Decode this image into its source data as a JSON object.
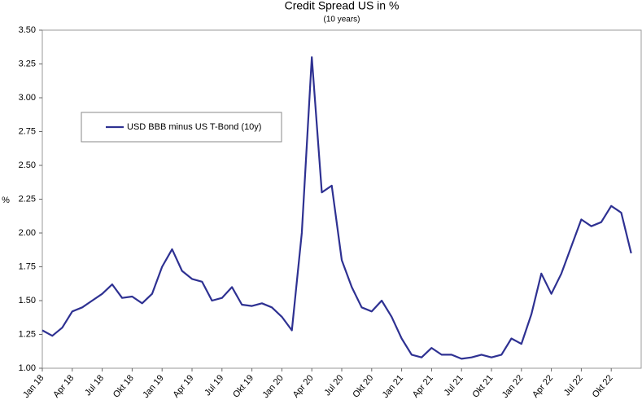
{
  "chart_data": {
    "type": "line",
    "title": "Credit Spread US in %",
    "subtitle": "(10 years)",
    "y_label": "%",
    "x": [
      "2018-01",
      "2018-02",
      "2018-03",
      "2018-04",
      "2018-05",
      "2018-06",
      "2018-07",
      "2018-08",
      "2018-09",
      "2018-10",
      "2018-11",
      "2018-12",
      "2019-01",
      "2019-02",
      "2019-03",
      "2019-04",
      "2019-05",
      "2019-06",
      "2019-07",
      "2019-08",
      "2019-09",
      "2019-10",
      "2019-11",
      "2019-12",
      "2020-01",
      "2020-02",
      "2020-03",
      "2020-04",
      "2020-05",
      "2020-06",
      "2020-07",
      "2020-08",
      "2020-09",
      "2020-10",
      "2020-11",
      "2020-12",
      "2021-01",
      "2021-02",
      "2021-03",
      "2021-04",
      "2021-05",
      "2021-06",
      "2021-07",
      "2021-08",
      "2021-09",
      "2021-10",
      "2021-11",
      "2021-12",
      "2022-01",
      "2022-02",
      "2022-03",
      "2022-04",
      "2022-05",
      "2022-06",
      "2022-07",
      "2022-08",
      "2022-09",
      "2022-10",
      "2022-11",
      "2022-12"
    ],
    "series": [
      {
        "name": "USD BBB minus US T-Bond (10y)",
        "color": "#2e3192",
        "values": [
          1.28,
          1.24,
          1.3,
          1.42,
          1.45,
          1.5,
          1.55,
          1.62,
          1.52,
          1.53,
          1.48,
          1.55,
          1.75,
          1.88,
          1.72,
          1.66,
          1.64,
          1.5,
          1.52,
          1.6,
          1.47,
          1.46,
          1.48,
          1.45,
          1.38,
          1.28,
          2.0,
          3.3,
          2.3,
          2.35,
          1.8,
          1.6,
          1.45,
          1.42,
          1.5,
          1.38,
          1.22,
          1.1,
          1.08,
          1.15,
          1.1,
          1.1,
          1.07,
          1.08,
          1.1,
          1.08,
          1.1,
          1.22,
          1.18,
          1.4,
          1.7,
          1.55,
          1.7,
          1.9,
          2.1,
          2.05,
          2.08,
          2.2,
          2.15,
          1.85
        ]
      }
    ],
    "xlim": [
      "2018-01",
      "2023-01"
    ],
    "xticks": [
      {
        "value": "2018-01",
        "label": "Jan 18"
      },
      {
        "value": "2018-04",
        "label": "Apr 18"
      },
      {
        "value": "2018-07",
        "label": "Jul 18"
      },
      {
        "value": "2018-10",
        "label": "Okt 18"
      },
      {
        "value": "2019-01",
        "label": "Jan 19"
      },
      {
        "value": "2019-04",
        "label": "Apr 19"
      },
      {
        "value": "2019-07",
        "label": "Jul 19"
      },
      {
        "value": "2019-10",
        "label": "Okt 19"
      },
      {
        "value": "2020-01",
        "label": "Jan 20"
      },
      {
        "value": "2020-04",
        "label": "Apr 20"
      },
      {
        "value": "2020-07",
        "label": "Jul 20"
      },
      {
        "value": "2020-10",
        "label": "Okt 20"
      },
      {
        "value": "2021-01",
        "label": "Jan 21"
      },
      {
        "value": "2021-04",
        "label": "Apr 21"
      },
      {
        "value": "2021-07",
        "label": "Jul 21"
      },
      {
        "value": "2021-10",
        "label": "Okt 21"
      },
      {
        "value": "2022-01",
        "label": "Jan 22"
      },
      {
        "value": "2022-04",
        "label": "Apr 22"
      },
      {
        "value": "2022-07",
        "label": "Jul 22"
      },
      {
        "value": "2022-10",
        "label": "Okt 22"
      }
    ],
    "ylim": [
      1.0,
      3.5
    ],
    "yticks": [
      {
        "value": 1.0,
        "label": "1.00"
      },
      {
        "value": 1.25,
        "label": "1.25"
      },
      {
        "value": 1.5,
        "label": "1.50"
      },
      {
        "value": 1.75,
        "label": "1.75"
      },
      {
        "value": 2.0,
        "label": "2.00"
      },
      {
        "value": 2.25,
        "label": "2.25"
      },
      {
        "value": 2.5,
        "label": "2.50"
      },
      {
        "value": 2.75,
        "label": "2.75"
      },
      {
        "value": 3.0,
        "label": "3.00"
      },
      {
        "value": 3.25,
        "label": "3.25"
      },
      {
        "value": 3.5,
        "label": "3.50"
      }
    ],
    "grid": false
  }
}
